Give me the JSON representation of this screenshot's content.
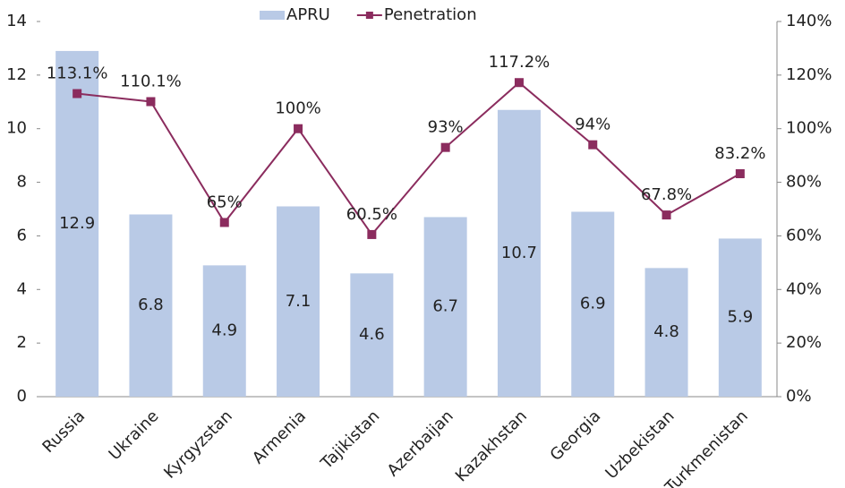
{
  "chart_data": {
    "type": "bar-line",
    "categories": [
      "Russia",
      "Ukraine",
      "Kyrgyzstan",
      "Armenia",
      "Tajikistan",
      "Azerbaijan",
      "Kazakhstan",
      "Georgia",
      "Uzbekistan",
      "Turkmenistan"
    ],
    "series": [
      {
        "name": "APRU",
        "type": "bar",
        "color": "#b9cae6",
        "values": [
          12.9,
          6.8,
          4.9,
          7.1,
          4.6,
          6.7,
          10.7,
          6.9,
          4.8,
          5.9
        ]
      },
      {
        "name": "Penetration",
        "type": "line",
        "axis": "y2",
        "color": "#8b2c5e",
        "values": [
          113.1,
          110.1,
          65,
          100,
          60.5,
          93,
          117.2,
          94,
          67.8,
          83.2
        ],
        "value_labels": [
          "113.1%",
          "110.1%",
          "65%",
          "100%",
          "60.5%",
          "93%",
          "117.2%",
          "94%",
          "67.8%",
          "83.2%"
        ]
      }
    ],
    "ylim": [
      0,
      14
    ],
    "yticks": [
      0,
      2,
      4,
      6,
      8,
      10,
      12,
      14
    ],
    "y2lim": [
      0,
      140
    ],
    "y2ticks": [
      {
        "value": 0,
        "label": "0%"
      },
      {
        "value": 20,
        "label": "20%"
      },
      {
        "value": 40,
        "label": "40%"
      },
      {
        "value": 60,
        "label": "60%"
      },
      {
        "value": 80,
        "label": "80%"
      },
      {
        "value": 100,
        "label": "100%"
      },
      {
        "value": 120,
        "label": "120%"
      },
      {
        "value": 140,
        "label": "140%"
      }
    ],
    "legend": "top",
    "grid": false
  }
}
